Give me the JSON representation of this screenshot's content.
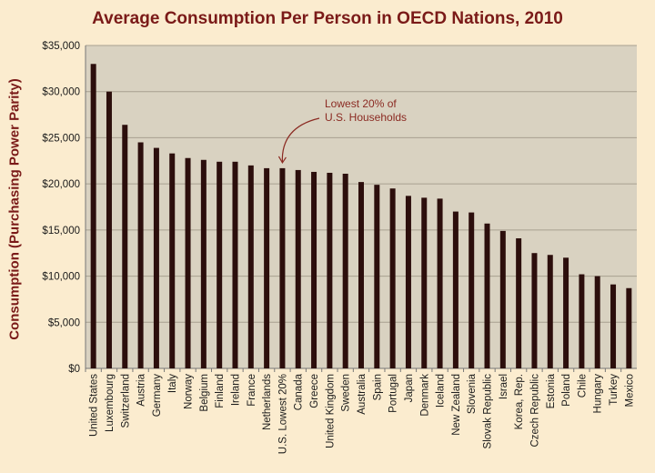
{
  "chart_data": {
    "type": "bar",
    "title": "Average Consumption Per Person in OECD Nations, 2010",
    "xlabel": "",
    "ylabel": "Consumption (Purchasing Power Parity)",
    "ylim": [
      0,
      35000
    ],
    "yticks": [
      "$0",
      "$5,000",
      "$10,000",
      "$15,000",
      "$20,000",
      "$25,000",
      "$30,000",
      "$35,000"
    ],
    "grid": true,
    "categories": [
      "United States",
      "Luxembourg",
      "Switzerland",
      "Austria",
      "Germany",
      "Italy",
      "Norway",
      "Belgium",
      "Finland",
      "Ireland",
      "France",
      "Netherlands",
      "U.S. Lowest 20%",
      "Canada",
      "Greece",
      "United Kingdom",
      "Sweden",
      "Australia",
      "Spain",
      "Portugal",
      "Japan",
      "Denmark",
      "Iceland",
      "New Zealand",
      "Slovenia",
      "Slovak Republic",
      "Israel",
      "Korea, Rep.",
      "Czech Republic",
      "Estonia",
      "Poland",
      "Chile",
      "Hungary",
      "Turkey",
      "Mexico"
    ],
    "values": [
      33000,
      30000,
      26400,
      24500,
      23900,
      23300,
      22800,
      22600,
      22400,
      22400,
      22000,
      21700,
      21700,
      21500,
      21300,
      21200,
      21100,
      20200,
      19900,
      19500,
      18700,
      18500,
      18400,
      17000,
      16900,
      15700,
      14900,
      14100,
      12500,
      12300,
      12000,
      10200,
      10000,
      9100,
      8700
    ],
    "annotation": {
      "text_lines": [
        "Lowest  20% of",
        "U.S. Households"
      ],
      "target": "U.S. Lowest 20%"
    },
    "colors": {
      "bar": "#2c0e0c",
      "plot_bg": "#d9d2c1",
      "grid": "#a8a090",
      "axis_text": "#1a1a1a",
      "title": "#7a1a18",
      "annotation": "#8b2a22",
      "page_bg": "#fbeccf"
    }
  }
}
